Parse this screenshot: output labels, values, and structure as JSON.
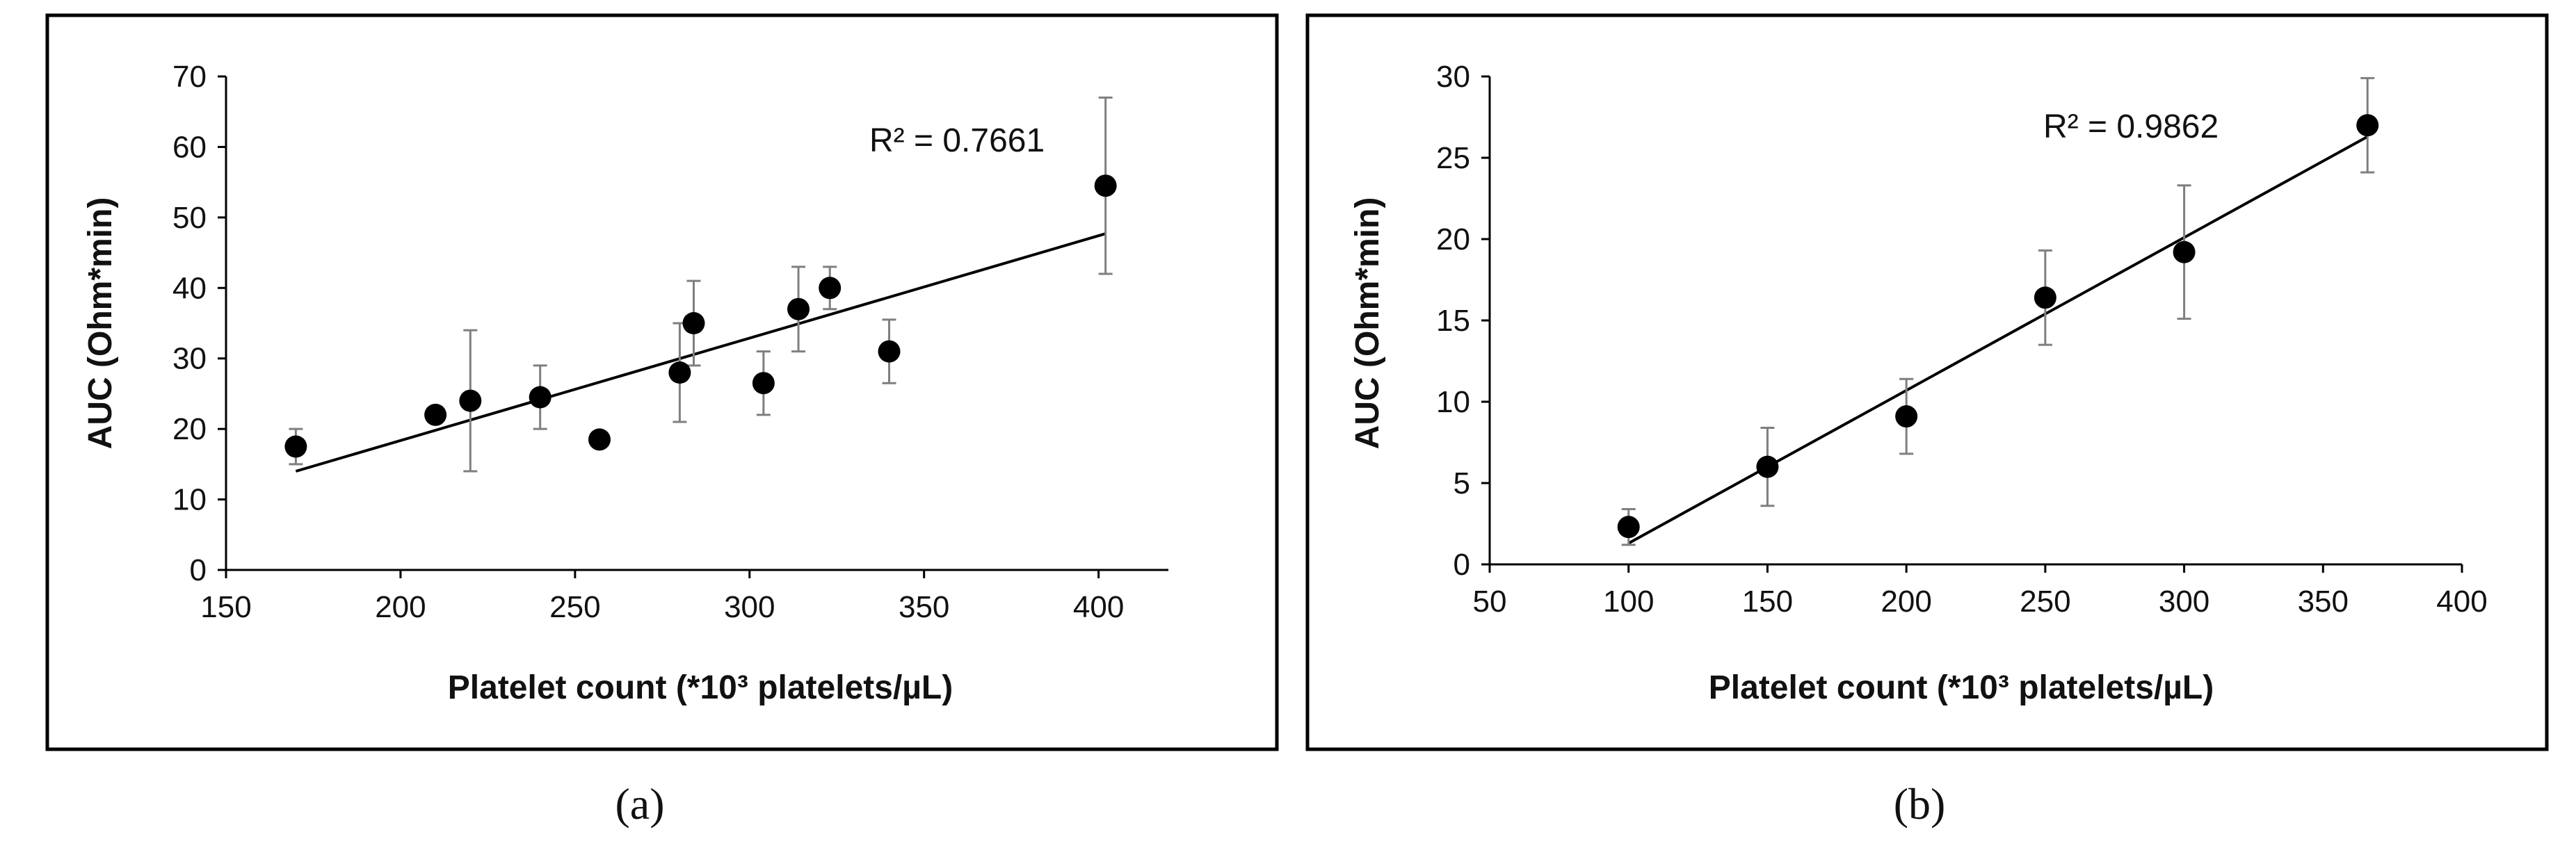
{
  "colors": {
    "marker": "#000000",
    "error_bar": "#7f7f7f",
    "trendline": "#000000",
    "frame": "#000000"
  },
  "chart_data": [
    {
      "type": "scatter",
      "panel_label": "(a)",
      "xlabel": "Platelet count (*10³ platelets/µL)",
      "ylabel": "AUC (Ohm*min)",
      "xlim": [
        150,
        420
      ],
      "ylim": [
        0,
        70
      ],
      "xticks": [
        150,
        200,
        250,
        300,
        350,
        400
      ],
      "yticks": [
        0,
        10,
        20,
        30,
        40,
        50,
        60,
        70
      ],
      "grid": false,
      "annotation": "R² = 0.7661",
      "points": [
        {
          "x": 170,
          "y": 17.5,
          "err": 2.5
        },
        {
          "x": 210,
          "y": 22,
          "err": 0
        },
        {
          "x": 220,
          "y": 24,
          "err": 10
        },
        {
          "x": 240,
          "y": 24.5,
          "err": 4.5
        },
        {
          "x": 257,
          "y": 18.5,
          "err": 0
        },
        {
          "x": 280,
          "y": 28,
          "err": 7
        },
        {
          "x": 284,
          "y": 35,
          "err": 6
        },
        {
          "x": 304,
          "y": 26.5,
          "err": 4.5
        },
        {
          "x": 314,
          "y": 37,
          "err": 6
        },
        {
          "x": 323,
          "y": 40,
          "err": 3
        },
        {
          "x": 340,
          "y": 31,
          "err": 4.5
        },
        {
          "x": 402,
          "y": 54.5,
          "err": 12.5
        }
      ],
      "trendline": {
        "x": [
          170,
          402
        ],
        "y": [
          14,
          47.7
        ]
      }
    },
    {
      "type": "scatter",
      "panel_label": "(b)",
      "xlabel": "Platelet count (*10³ platelets/µL)",
      "ylabel": "AUC (Ohm*min)",
      "xlim": [
        50,
        400
      ],
      "ylim": [
        0,
        30
      ],
      "xticks": [
        50,
        100,
        150,
        200,
        250,
        300,
        350,
        400
      ],
      "yticks": [
        0,
        5,
        10,
        15,
        20,
        25,
        30
      ],
      "grid": false,
      "annotation": "R² = 0.9862",
      "points": [
        {
          "x": 100,
          "y": 2.3,
          "err": 1.1
        },
        {
          "x": 150,
          "y": 6.0,
          "err": 2.4
        },
        {
          "x": 200,
          "y": 9.1,
          "err": 2.3
        },
        {
          "x": 250,
          "y": 16.4,
          "err": 2.9
        },
        {
          "x": 300,
          "y": 19.2,
          "err": 4.1
        },
        {
          "x": 366,
          "y": 27.0,
          "err": 2.9
        }
      ],
      "trendline": {
        "x": [
          100,
          366
        ],
        "y": [
          1.3,
          26.3
        ]
      }
    }
  ]
}
